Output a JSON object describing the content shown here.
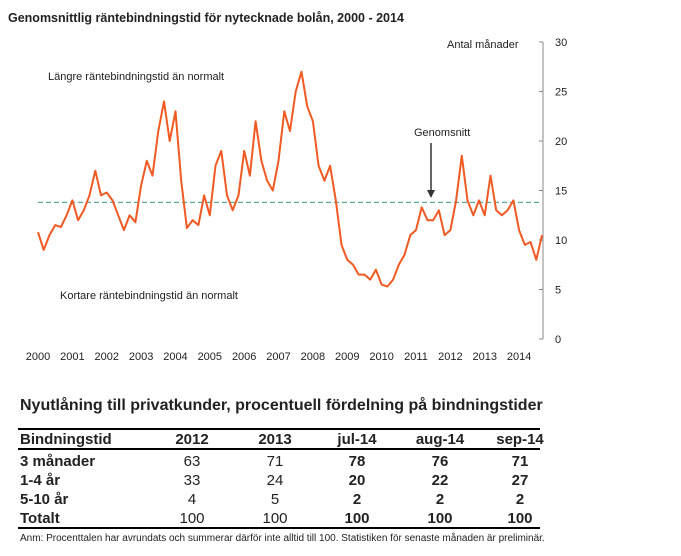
{
  "chart_data": {
    "type": "line",
    "title": "Genomsnittlig räntebindningstid för nytecknade bolån, 2000 - 2014",
    "y_axis_label": "Antal månader",
    "annotations": [
      "Längre räntebindningstid än normalt",
      "Kortare räntebindningstid än normalt",
      "Genomsnitt"
    ],
    "categories": [
      "2000",
      null,
      null,
      null,
      null,
      null,
      "2001",
      null,
      null,
      null,
      null,
      null,
      "2002",
      null,
      null,
      null,
      null,
      null,
      "2003",
      null,
      null,
      null,
      null,
      null,
      "2004",
      null,
      null,
      null,
      null,
      null,
      "2005",
      null,
      null,
      null,
      null,
      null,
      "2006",
      null,
      null,
      null,
      null,
      null,
      "2007",
      null,
      null,
      null,
      null,
      null,
      "2008",
      null,
      null,
      null,
      null,
      null,
      "2009",
      null,
      null,
      null,
      null,
      null,
      "2010",
      null,
      null,
      null,
      null,
      null,
      "2011",
      null,
      null,
      null,
      null,
      null,
      "2012",
      null,
      null,
      null,
      null,
      null,
      "2013",
      null,
      null,
      null,
      null,
      null,
      "2014",
      null,
      null,
      null,
      null
    ],
    "series": [
      {
        "name": "Räntebindningstid",
        "color": "#f05a23",
        "values": [
          10.8,
          9.0,
          10.5,
          11.5,
          11.3,
          12.5,
          14.0,
          12.0,
          13.0,
          14.5,
          17.0,
          14.5,
          14.8,
          14.0,
          12.5,
          11.0,
          12.5,
          11.8,
          15.5,
          18.0,
          16.5,
          21.0,
          24.0,
          20.0,
          23.0,
          16.0,
          11.2,
          12.0,
          11.5,
          14.5,
          12.5,
          17.5,
          19.0,
          14.5,
          13.0,
          14.5,
          19.0,
          16.5,
          22.0,
          18.0,
          16.0,
          15.0,
          18.0,
          23.0,
          21.0,
          25.0,
          27.0,
          23.5,
          22.0,
          17.5,
          16.0,
          17.5,
          14.0,
          9.5,
          8.0,
          7.5,
          6.5,
          6.5,
          6.0,
          7.0,
          5.5,
          5.3,
          6.0,
          7.5,
          8.5,
          10.5,
          11.0,
          13.3,
          12.0,
          12.0,
          13.0,
          10.5,
          11.0,
          14.0,
          18.5,
          14.0,
          12.5,
          14.0,
          12.5,
          16.5,
          13.0,
          12.5,
          13.0,
          14.0,
          11.0,
          9.5,
          9.8,
          8.0,
          10.5
        ]
      }
    ],
    "average": 13.8,
    "average_color": "#5aaa9c",
    "ylim": [
      0,
      30
    ],
    "yticks": [
      0,
      5,
      10,
      15,
      20,
      25,
      30
    ],
    "y_axis_side": "right",
    "grid": false
  },
  "table": {
    "title": "Nyutlåning till privatkunder, procentuell fördelning på bindningstider",
    "columns": [
      "Bindningstid",
      "2012",
      "2013",
      "jul-14",
      "aug-14",
      "sep-14"
    ],
    "rows": [
      {
        "label": "3 månader",
        "values": [
          63,
          71,
          78,
          76,
          71
        ]
      },
      {
        "label": "1-4 år",
        "values": [
          33,
          24,
          20,
          22,
          27
        ]
      },
      {
        "label": "5-10 år",
        "values": [
          4,
          5,
          2,
          2,
          2
        ]
      },
      {
        "label": "Totalt",
        "values": [
          100,
          100,
          100,
          100,
          100
        ]
      }
    ],
    "note": "Anm: Procenttalen har avrundats och summerar därför inte alltid till 100. Statistiken för senaste månaden är preliminär."
  }
}
